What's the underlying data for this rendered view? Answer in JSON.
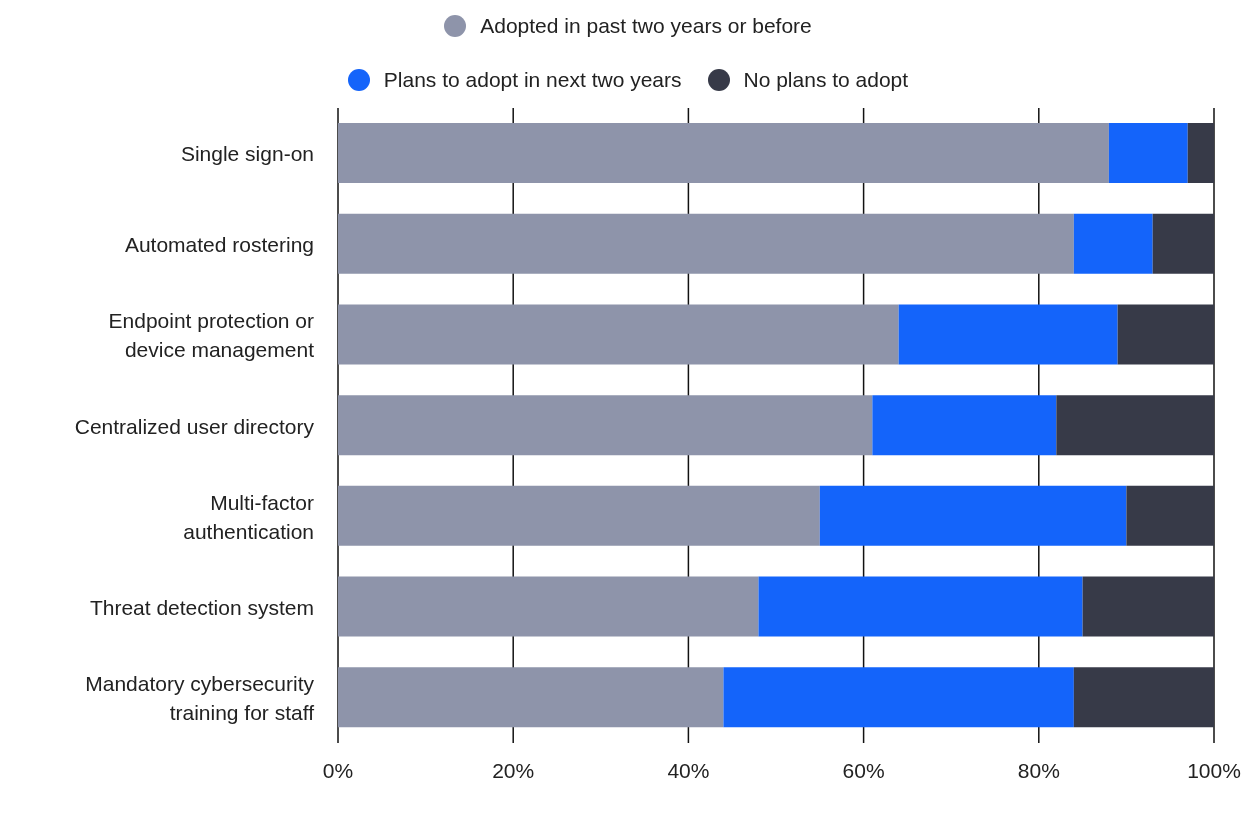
{
  "chart_data": {
    "type": "bar",
    "orientation": "horizontal",
    "stacked": true,
    "categories": [
      "Single sign-on",
      "Automated rostering",
      "Endpoint protection or device management",
      "Centralized user directory",
      "Multi-factor authentication",
      "Threat detection system",
      "Mandatory cybersecurity training for staff"
    ],
    "series": [
      {
        "name": "Adopted in past two years or before",
        "color": "#8e94aa",
        "values": [
          88,
          84,
          64,
          61,
          55,
          48,
          44
        ]
      },
      {
        "name": "Plans to adopt in next two years",
        "color": "#1464fa",
        "values": [
          9,
          9,
          25,
          21,
          35,
          37,
          40
        ]
      },
      {
        "name": "No plans to adopt",
        "color": "#373a48",
        "values": [
          3,
          7,
          11,
          18,
          10,
          15,
          16
        ]
      }
    ],
    "xlim": [
      0,
      100
    ],
    "xticks": [
      {
        "value": 0,
        "label": "0%"
      },
      {
        "value": 20,
        "label": "20%"
      },
      {
        "value": 40,
        "label": "40%"
      },
      {
        "value": 60,
        "label": "60%"
      },
      {
        "value": 80,
        "label": "80%"
      },
      {
        "value": 100,
        "label": "100%"
      }
    ],
    "grid": "x",
    "legend": "top",
    "marker": "circle"
  }
}
